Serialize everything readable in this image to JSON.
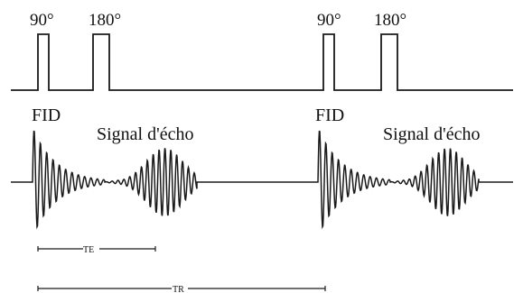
{
  "pulse_labels": [
    "90°",
    "180°",
    "90°",
    "180°"
  ],
  "signal_labels": {
    "fid_1": "FID",
    "echo_1": "Signal d'écho",
    "fid_2": "FID",
    "echo_2": "Signal d'écho"
  },
  "intervals": {
    "te": "TE",
    "tr": "TR"
  },
  "colors": {
    "ink": "#1a1a1a",
    "background": "#ffffff"
  }
}
